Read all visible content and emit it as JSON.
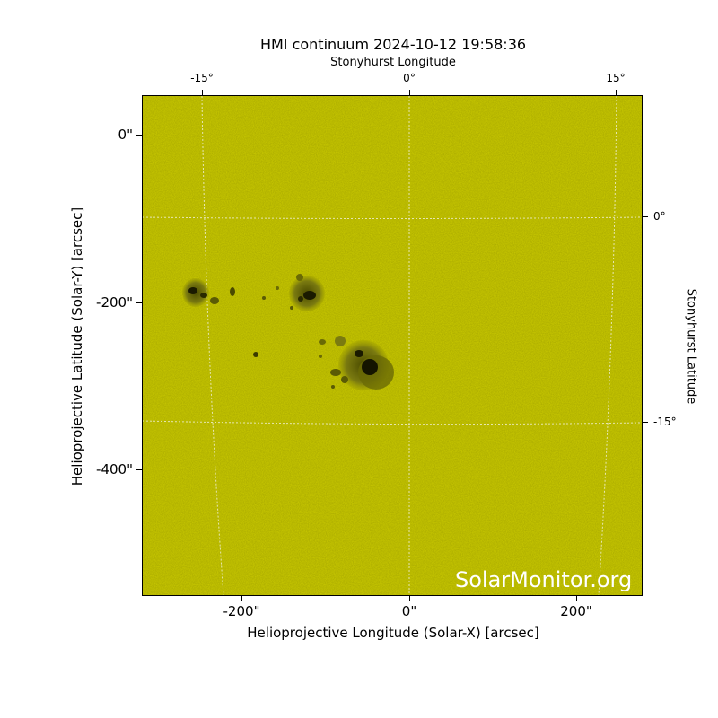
{
  "title": "HMI continuum 2024-10-12 19:58:36",
  "top_axis_label": "Stonyhurst Longitude",
  "right_axis_label": "Stonyhurst Latitude",
  "x_axis_label": "Helioprojective Longitude (Solar-X) [arcsec]",
  "y_axis_label": "Helioprojective Latitude (Solar-Y) [arcsec]",
  "top_ticks": [
    "-15°",
    "0°",
    "15°"
  ],
  "right_ticks": [
    "0°",
    "-15°"
  ],
  "left_ticks": [
    "0\"",
    "-200\"",
    "-400\""
  ],
  "bottom_ticks": [
    "-200\"",
    "0\"",
    "200\""
  ],
  "watermark": "SolarMonitor.org",
  "colors": {
    "background": "#cccc00",
    "grid": "#e6e6b0",
    "sunspot": "#1a1a00"
  }
}
